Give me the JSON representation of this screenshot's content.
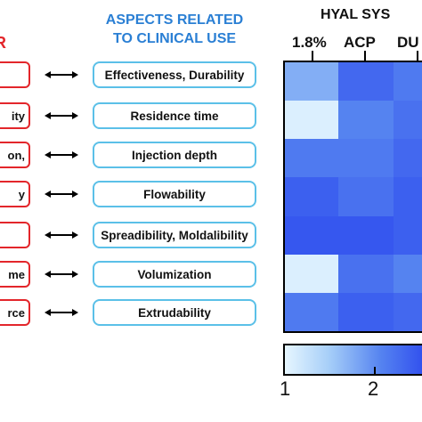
{
  "left_panel": {
    "title_fragment": "R",
    "items": [
      {
        "label": ""
      },
      {
        "label": "ity"
      },
      {
        "label": "on,"
      },
      {
        "label": "y"
      },
      {
        "label": ""
      },
      {
        "label": "me"
      },
      {
        "label": "rce"
      }
    ]
  },
  "middle_panel": {
    "title_line1": "ASPECTS RELATED",
    "title_line2": "TO CLINICAL USE",
    "items": [
      {
        "label": "Effectiveness, Durability"
      },
      {
        "label": "Residence time"
      },
      {
        "label": "Injection depth"
      },
      {
        "label": "Flowability"
      },
      {
        "label": "Spreadibility, Moldalibility"
      },
      {
        "label": "Volumization"
      },
      {
        "label": "Extrudability"
      }
    ]
  },
  "heatmap_panel": {
    "title": "HYAL SYS",
    "columns": [
      "1.8%",
      "ACP",
      "DU"
    ]
  },
  "colorbar": {
    "tick_labels": [
      "1",
      "2"
    ]
  },
  "chart_data": {
    "type": "heatmap",
    "title": "HYAL SYS",
    "columns": [
      "1.8%",
      "ACP",
      "DU"
    ],
    "rows": [
      "Effectiveness, Durability",
      "Residence time",
      "Injection depth",
      "Flowability",
      "Spreadibility, Moldalibility",
      "Volumization",
      "Extrudability"
    ],
    "values": [
      [
        1.9,
        2.6,
        2.4
      ],
      [
        1.1,
        2.3,
        2.5
      ],
      [
        2.4,
        2.4,
        2.6
      ],
      [
        2.7,
        2.5,
        2.7
      ],
      [
        2.8,
        2.8,
        2.7
      ],
      [
        1.1,
        2.5,
        2.3
      ],
      [
        2.4,
        2.7,
        2.6
      ]
    ],
    "colorbar_range": [
      1,
      3
    ],
    "colorbar_ticks": [
      1,
      2
    ],
    "colors": {
      "low": "#e6f6ff",
      "mid": "#8eb8f6",
      "high": "#2a45ee"
    }
  },
  "caption": ""
}
